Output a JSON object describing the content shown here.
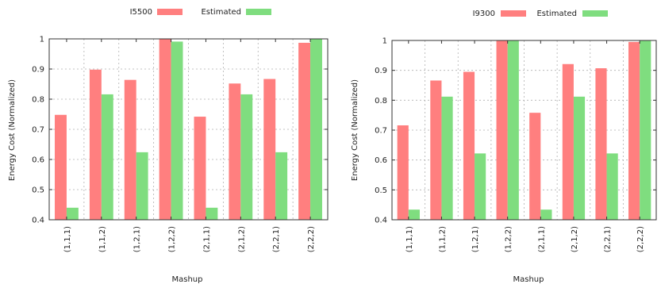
{
  "colors": {
    "series1": "#ff7f7f",
    "series2": "#7fdd7f",
    "grid": "#b0b0b0",
    "axis": "#333333"
  },
  "chart_data": [
    {
      "type": "bar",
      "categories": [
        "(1,1,1)",
        "(1,1,2)",
        "(1,2,1)",
        "(1,2,2)",
        "(2,1,1)",
        "(2,1,2)",
        "(2,2,1)",
        "(2,2,2)"
      ],
      "series": [
        {
          "name": "I5500",
          "values": [
            0.748,
            0.898,
            0.864,
            1.0,
            0.742,
            0.852,
            0.867,
            0.987
          ]
        },
        {
          "name": "Estimated",
          "values": [
            0.44,
            0.816,
            0.624,
            0.991,
            0.44,
            0.816,
            0.624,
            1.0
          ]
        }
      ],
      "xlabel": "Mashup",
      "ylabel": "Energy Cost (Normalized)",
      "ylim": [
        0.4,
        1.0
      ],
      "yticks": [
        "0.4",
        "0.5",
        "0.6",
        "0.7",
        "0.8",
        "0.9",
        "1"
      ],
      "grid": true,
      "legend": "top-center"
    },
    {
      "type": "bar",
      "categories": [
        "(1,1,1)",
        "(1,1,2)",
        "(1,2,1)",
        "(1,2,2)",
        "(2,1,1)",
        "(2,1,2)",
        "(2,2,1)",
        "(2,2,2)"
      ],
      "series": [
        {
          "name": "I9300",
          "values": [
            0.716,
            0.866,
            0.895,
            1.0,
            0.758,
            0.921,
            0.907,
            0.995
          ]
        },
        {
          "name": "Estimated",
          "values": [
            0.434,
            0.812,
            0.622,
            1.0,
            0.434,
            0.812,
            0.622,
            1.0
          ]
        }
      ],
      "xlabel": "Mashup",
      "ylabel": "Energy Cost (Normalized)",
      "ylim": [
        0.4,
        1.0
      ],
      "yticks": [
        "0.4",
        "0.5",
        "0.6",
        "0.7",
        "0.8",
        "0.9",
        "1"
      ],
      "grid": true,
      "legend": "top-center"
    }
  ]
}
